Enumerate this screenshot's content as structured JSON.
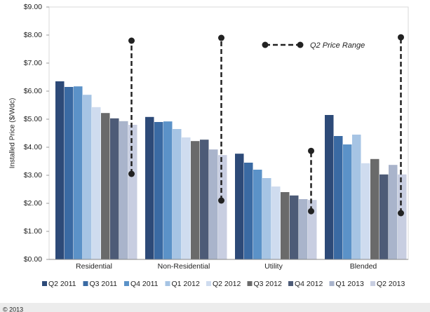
{
  "chart_data": {
    "type": "bar",
    "y_axis_label": "Installed Price ($/Wdc)",
    "categories": [
      "Residential",
      "Non-Residential",
      "Utility",
      "Blended"
    ],
    "series": [
      {
        "name": "Q2 2011",
        "color": "#2d4a78",
        "values": [
          6.35,
          5.08,
          3.77,
          5.15
        ]
      },
      {
        "name": "Q3 2011",
        "color": "#3a6aa3",
        "values": [
          6.15,
          4.9,
          3.45,
          4.4
        ]
      },
      {
        "name": "Q4 2011",
        "color": "#5b92c8",
        "values": [
          6.17,
          4.92,
          3.2,
          4.1
        ]
      },
      {
        "name": "Q1 2012",
        "color": "#a6c4e4",
        "values": [
          5.87,
          4.65,
          2.9,
          4.45
        ]
      },
      {
        "name": "Q2 2012",
        "color": "#cfdcef",
        "values": [
          5.43,
          4.35,
          2.6,
          3.43
        ]
      },
      {
        "name": "Q3 2012",
        "color": "#6a6a6a",
        "values": [
          5.22,
          4.22,
          2.4,
          3.58
        ]
      },
      {
        "name": "Q4 2012",
        "color": "#4d5b77",
        "values": [
          5.03,
          4.27,
          2.28,
          3.03
        ]
      },
      {
        "name": "Q1 2013",
        "color": "#a9b4cb",
        "values": [
          4.93,
          3.92,
          2.15,
          3.37
        ]
      },
      {
        "name": "Q2 2013",
        "color": "#c8cee1",
        "values": [
          4.8,
          3.72,
          2.12,
          3.03
        ]
      }
    ],
    "range": {
      "name": "Q2 Price Range",
      "color": "#222222",
      "low": [
        3.05,
        2.1,
        1.72,
        1.65
      ],
      "high": [
        7.8,
        7.9,
        3.87,
        7.92
      ]
    },
    "ylim": [
      0,
      9
    ],
    "yticks": [
      {
        "value": 0,
        "label": "$0.00"
      },
      {
        "value": 1,
        "label": "$1.00"
      },
      {
        "value": 2,
        "label": "$2.00"
      },
      {
        "value": 3,
        "label": "$3.00"
      },
      {
        "value": 4,
        "label": "$4.00"
      },
      {
        "value": 5,
        "label": "$5.00"
      },
      {
        "value": 6,
        "label": "$6.00"
      },
      {
        "value": 7,
        "label": "$7.00"
      },
      {
        "value": 8,
        "label": "$8.00"
      },
      {
        "value": 9,
        "label": "$9.00"
      }
    ],
    "grid": false,
    "footer": "© 2013"
  }
}
